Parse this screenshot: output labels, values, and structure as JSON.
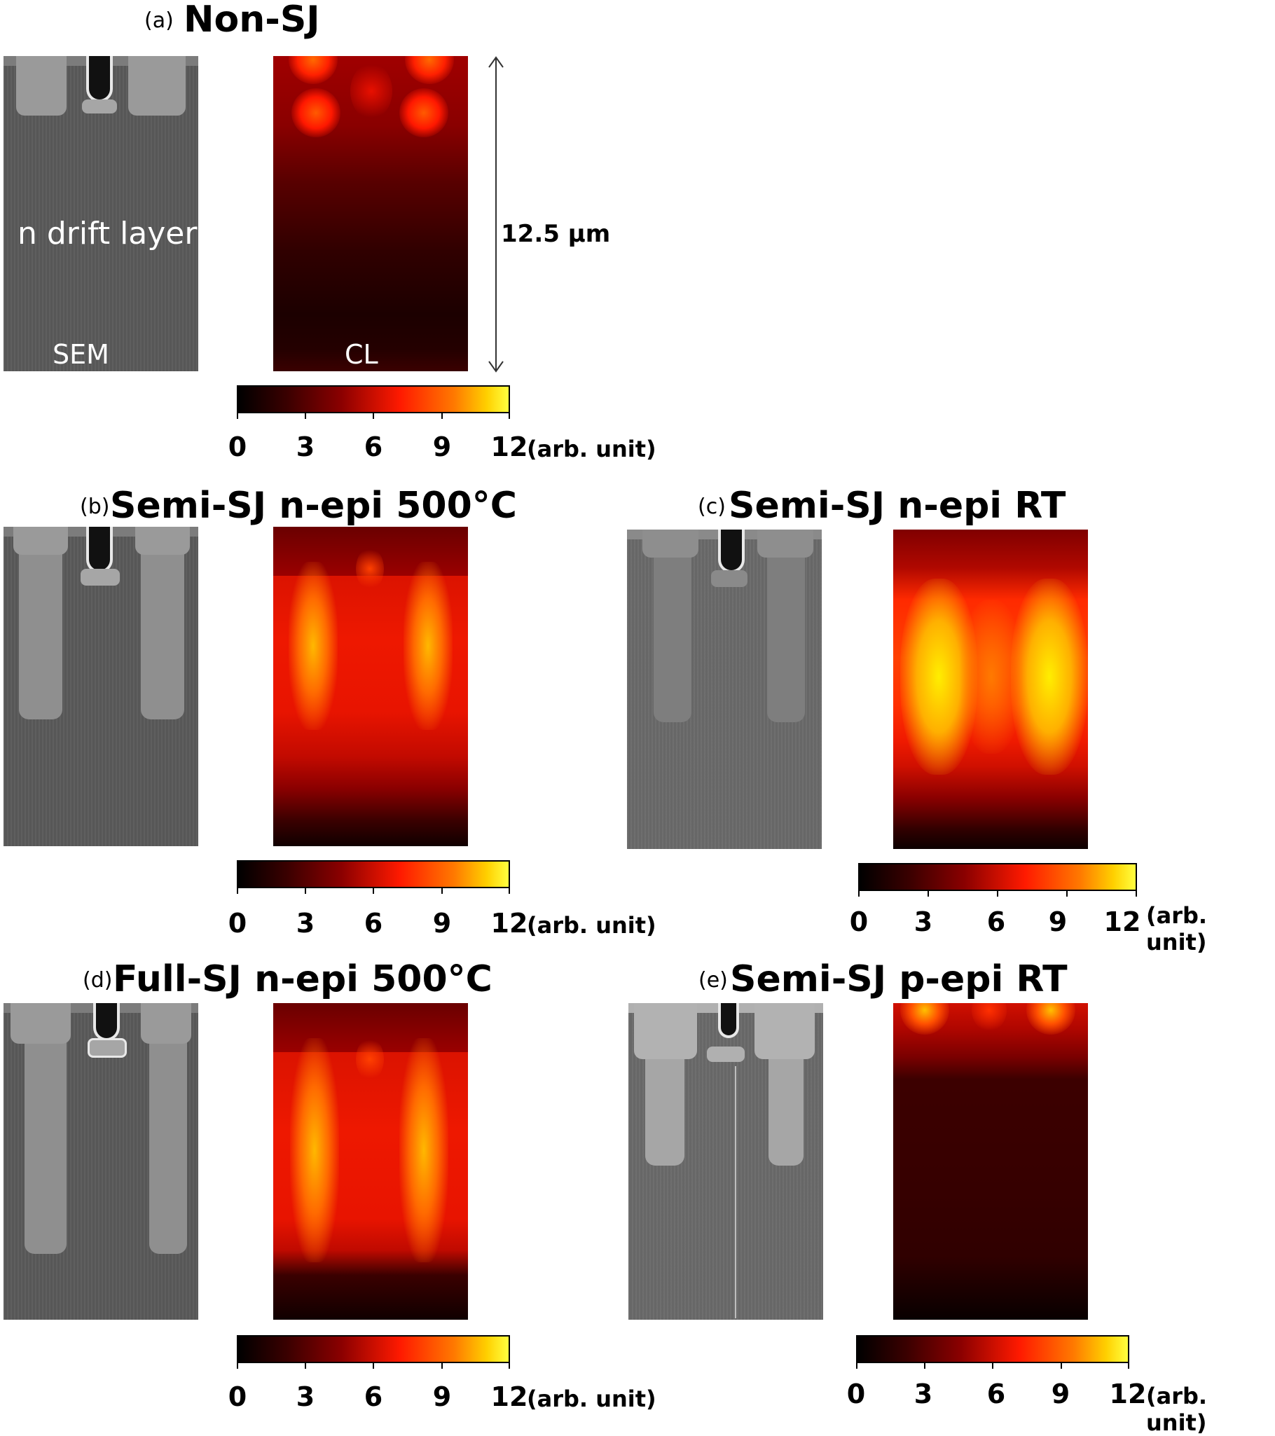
{
  "panels": {
    "a": {
      "tag": "(a)",
      "title": "Non-SJ",
      "sem_label": "n drift layer",
      "sem_sublabel": "SEM image",
      "cl_sublabel": "CL image",
      "scale": "12.5 μm"
    },
    "b": {
      "tag": "(b)",
      "title": "Semi-SJ n-epi 500°C"
    },
    "c": {
      "tag": "(c)",
      "title": "Semi-SJ n-epi RT"
    },
    "d": {
      "tag": "(d)",
      "title": "Full-SJ n-epi 500°C"
    },
    "e": {
      "tag": "(e)",
      "title": "Semi-SJ p-epi RT"
    }
  },
  "colorbar": {
    "ticks": [
      "0",
      "3",
      "6",
      "9",
      "12"
    ],
    "unit": "(arb. unit)",
    "range": [
      0,
      12
    ]
  }
}
